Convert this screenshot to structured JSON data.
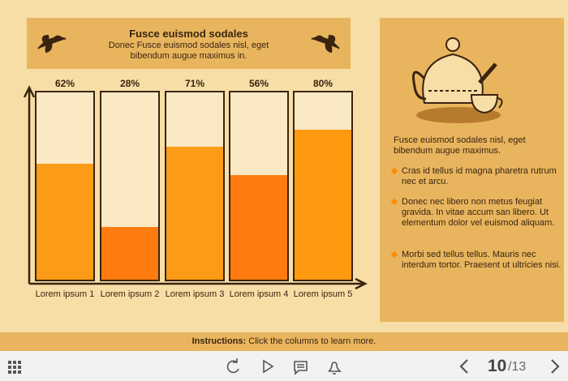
{
  "header": {
    "title": "Fusce euismod sodales",
    "subtitle": "Donec Fusce euismod sodales nisl, eget bibendum augue maximus in."
  },
  "chart_data": {
    "type": "bar",
    "categories": [
      "Lorem ipsum 1",
      "Lorem ipsum 2",
      "Lorem ipsum 3",
      "Lorem ipsum 4",
      "Lorem ipsum 5"
    ],
    "values": [
      62,
      28,
      71,
      56,
      80
    ],
    "value_labels": [
      "62%",
      "28%",
      "71%",
      "56%",
      "80%"
    ],
    "colors": [
      "#fb9b17",
      "#ff7b0f",
      "#fb9b17",
      "#ff7b0f",
      "#ff9a10"
    ],
    "ylim": [
      0,
      100
    ]
  },
  "panel": {
    "intro": "Fusce euismod sodales nisl, eget bibendum augue maximus.",
    "bullets": [
      "Cras id tellus id magna pharetra rutrum nec et arcu.",
      "Donec nec libero non metus feugiat gravida. In vitae accum san libero. Ut elementum dolor vel euismod aliquam.",
      "Morbi sed tellus tellus. Mauris nec interdum tortor. Praesent ut ultricies nisi."
    ]
  },
  "instructions": {
    "label": "Instructions:",
    "text": "Click the columns to learn more."
  },
  "nav": {
    "current": "10",
    "total": "/13"
  }
}
